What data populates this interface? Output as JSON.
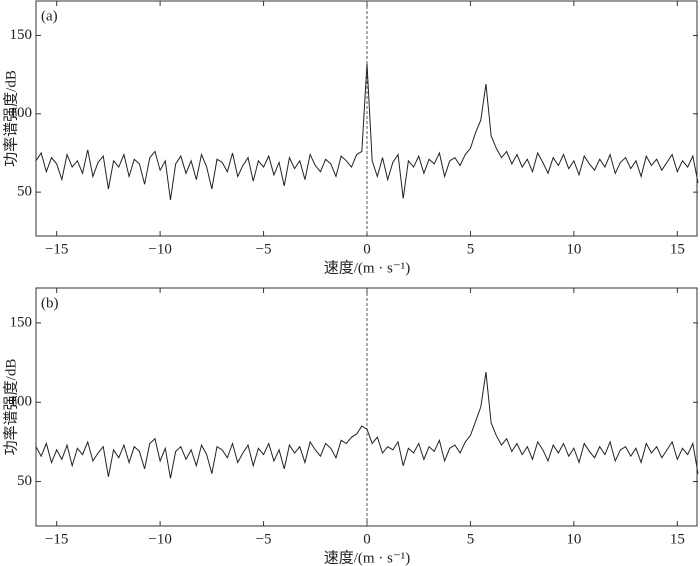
{
  "chart_data": [
    {
      "type": "line",
      "annotation": "(a)",
      "xlabel": "速度/(m · s⁻¹)",
      "ylabel": "功率谱强度/dB",
      "xlim": [
        -16,
        16
      ],
      "ylim": [
        22,
        172
      ],
      "xticks": [
        {
          "value": -15,
          "label": "−15"
        },
        {
          "value": -10,
          "label": "−10"
        },
        {
          "value": -5,
          "label": "−5"
        },
        0,
        5,
        10,
        15
      ],
      "yticks": [
        50,
        100,
        150
      ],
      "vline": 0,
      "x": [
        -16,
        -15.75,
        -15.5,
        -15.25,
        -15,
        -14.75,
        -14.5,
        -14.25,
        -14,
        -13.75,
        -13.5,
        -13.25,
        -13,
        -12.75,
        -12.5,
        -12.25,
        -12,
        -11.75,
        -11.5,
        -11.25,
        -11,
        -10.75,
        -10.5,
        -10.25,
        -10,
        -9.75,
        -9.5,
        -9.25,
        -9,
        -8.75,
        -8.5,
        -8.25,
        -8,
        -7.75,
        -7.5,
        -7.25,
        -7,
        -6.75,
        -6.5,
        -6.25,
        -6,
        -5.75,
        -5.5,
        -5.25,
        -5,
        -4.75,
        -4.5,
        -4.25,
        -4,
        -3.75,
        -3.5,
        -3.25,
        -3,
        -2.75,
        -2.5,
        -2.25,
        -2,
        -1.75,
        -1.5,
        -1.25,
        -1,
        -0.75,
        -0.5,
        -0.25,
        0,
        0.25,
        0.5,
        0.75,
        1,
        1.25,
        1.5,
        1.75,
        2,
        2.25,
        2.5,
        2.75,
        3,
        3.25,
        3.5,
        3.75,
        4,
        4.25,
        4.5,
        4.75,
        5,
        5.25,
        5.5,
        5.75,
        6,
        6.25,
        6.5,
        6.75,
        7,
        7.25,
        7.5,
        7.75,
        8,
        8.25,
        8.5,
        8.75,
        9,
        9.25,
        9.5,
        9.75,
        10,
        10.25,
        10.5,
        10.75,
        11,
        11.25,
        11.5,
        11.75,
        12,
        12.25,
        12.5,
        12.75,
        13,
        13.25,
        13.5,
        13.75,
        14,
        14.25,
        14.5,
        14.75,
        15,
        15.25,
        15.5,
        15.75,
        16
      ],
      "series": [
        {
          "color": "#222222",
          "values": [
            70,
            75,
            63,
            72,
            68,
            58,
            74,
            66,
            70,
            62,
            77,
            60,
            69,
            73,
            52,
            70,
            66,
            74,
            60,
            71,
            68,
            55,
            72,
            76,
            64,
            70,
            45,
            68,
            73,
            62,
            70,
            58,
            74,
            66,
            52,
            71,
            69,
            63,
            75,
            60,
            67,
            72,
            57,
            70,
            66,
            73,
            61,
            69,
            54,
            72,
            65,
            70,
            58,
            74,
            67,
            63,
            71,
            68,
            60,
            73,
            70,
            66,
            74,
            76,
            132,
            70,
            60,
            72,
            58,
            69,
            74,
            46,
            70,
            66,
            73,
            62,
            71,
            68,
            75,
            60,
            70,
            72,
            67,
            74,
            78,
            88,
            96,
            119,
            86,
            78,
            72,
            76,
            68,
            74,
            66,
            71,
            63,
            75,
            69,
            62,
            72,
            67,
            74,
            65,
            70,
            61,
            73,
            68,
            64,
            71,
            66,
            74,
            62,
            69,
            72,
            65,
            70,
            60,
            73,
            67,
            71,
            64,
            69,
            74,
            63,
            70,
            66,
            73,
            56
          ]
        }
      ]
    },
    {
      "type": "line",
      "annotation": "(b)",
      "xlabel": "速度/(m · s⁻¹)",
      "ylabel": "功率谱强度/dB",
      "xlim": [
        -16,
        16
      ],
      "ylim": [
        22,
        172
      ],
      "xticks": [
        {
          "value": -15,
          "label": "−15"
        },
        {
          "value": -10,
          "label": "−10"
        },
        {
          "value": -5,
          "label": "−5"
        },
        0,
        5,
        10,
        15
      ],
      "yticks": [
        50,
        100,
        150
      ],
      "vline": 0,
      "x": [
        -16,
        -15.75,
        -15.5,
        -15.25,
        -15,
        -14.75,
        -14.5,
        -14.25,
        -14,
        -13.75,
        -13.5,
        -13.25,
        -13,
        -12.75,
        -12.5,
        -12.25,
        -12,
        -11.75,
        -11.5,
        -11.25,
        -11,
        -10.75,
        -10.5,
        -10.25,
        -10,
        -9.75,
        -9.5,
        -9.25,
        -9,
        -8.75,
        -8.5,
        -8.25,
        -8,
        -7.75,
        -7.5,
        -7.25,
        -7,
        -6.75,
        -6.5,
        -6.25,
        -6,
        -5.75,
        -5.5,
        -5.25,
        -5,
        -4.75,
        -4.5,
        -4.25,
        -4,
        -3.75,
        -3.5,
        -3.25,
        -3,
        -2.75,
        -2.5,
        -2.25,
        -2,
        -1.75,
        -1.5,
        -1.25,
        -1,
        -0.75,
        -0.5,
        -0.25,
        0,
        0.25,
        0.5,
        0.75,
        1,
        1.25,
        1.5,
        1.75,
        2,
        2.25,
        2.5,
        2.75,
        3,
        3.25,
        3.5,
        3.75,
        4,
        4.25,
        4.5,
        4.75,
        5,
        5.25,
        5.5,
        5.75,
        6,
        6.25,
        6.5,
        6.75,
        7,
        7.25,
        7.5,
        7.75,
        8,
        8.25,
        8.5,
        8.75,
        9,
        9.25,
        9.5,
        9.75,
        10,
        10.25,
        10.5,
        10.75,
        11,
        11.25,
        11.5,
        11.75,
        12,
        12.25,
        12.5,
        12.75,
        13,
        13.25,
        13.5,
        13.75,
        14,
        14.25,
        14.5,
        14.75,
        15,
        15.25,
        15.5,
        15.75,
        16
      ],
      "series": [
        {
          "color": "#222222",
          "values": [
            72,
            66,
            74,
            62,
            70,
            64,
            73,
            60,
            71,
            67,
            75,
            63,
            68,
            72,
            53,
            70,
            65,
            73,
            62,
            72,
            69,
            58,
            74,
            77,
            63,
            71,
            52,
            69,
            72,
            64,
            70,
            60,
            73,
            67,
            55,
            72,
            70,
            65,
            74,
            62,
            68,
            73,
            60,
            71,
            67,
            74,
            63,
            70,
            58,
            73,
            68,
            72,
            62,
            75,
            70,
            66,
            74,
            71,
            65,
            76,
            74,
            78,
            80,
            85,
            83,
            74,
            78,
            68,
            72,
            70,
            75,
            60,
            71,
            68,
            74,
            64,
            72,
            69,
            76,
            63,
            71,
            73,
            68,
            75,
            79,
            88,
            97,
            119,
            87,
            79,
            73,
            77,
            69,
            74,
            67,
            72,
            64,
            75,
            70,
            63,
            73,
            68,
            74,
            66,
            71,
            62,
            74,
            69,
            65,
            72,
            67,
            75,
            63,
            70,
            72,
            66,
            71,
            62,
            74,
            68,
            72,
            65,
            70,
            75,
            64,
            71,
            67,
            74,
            55
          ]
        }
      ]
    }
  ]
}
